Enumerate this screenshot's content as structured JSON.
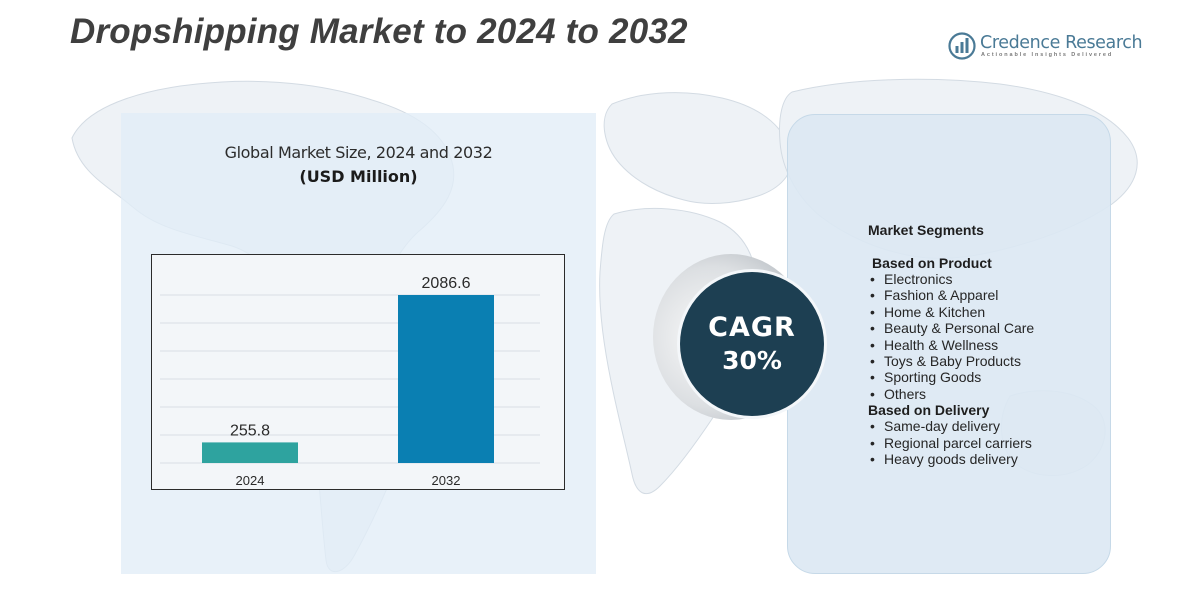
{
  "header": {
    "title": "Dropshipping Market to 2024 to 2032"
  },
  "logo": {
    "name": "Credence Research",
    "tagline": "Actionable Insights Delivered",
    "color": "#4a7a96"
  },
  "chart_data": {
    "type": "bar",
    "title": "Global Market Size,  2024 and 2032",
    "subtitle": "(USD Million)",
    "categories": [
      "2024",
      "2032"
    ],
    "values": [
      255.8,
      2086.6
    ],
    "value_labels": [
      "255.8",
      "2086.6"
    ],
    "colors": [
      "#2ea39f",
      "#0a7fb2"
    ],
    "grid": true,
    "legend": "none"
  },
  "cagr": {
    "label": "CAGR",
    "value": "30%",
    "color": "#1d3f52"
  },
  "segments": {
    "heading": "Market Segments",
    "groups": [
      {
        "title": "Based on Product",
        "items": [
          "Electronics",
          "Fashion & Apparel",
          "Home & Kitchen",
          "Beauty & Personal Care",
          "Health & Wellness",
          "Toys & Baby Products",
          "Sporting Goods",
          "Others"
        ]
      },
      {
        "title": "Based on Delivery",
        "items": [
          "Same-day delivery",
          "Regional parcel carriers",
          "Heavy goods delivery"
        ]
      }
    ]
  }
}
